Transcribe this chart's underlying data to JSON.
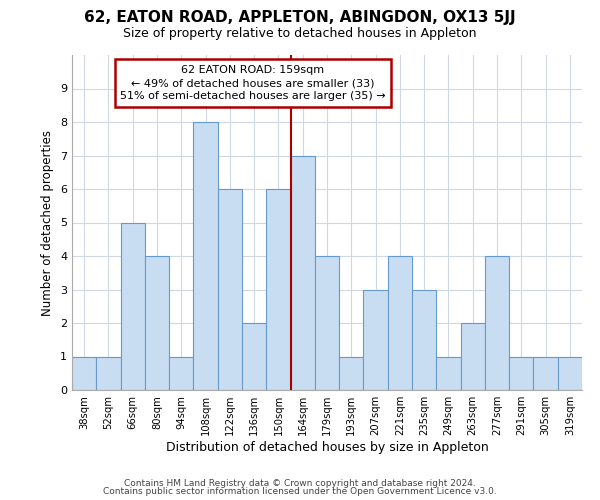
{
  "title": "62, EATON ROAD, APPLETON, ABINGDON, OX13 5JJ",
  "subtitle": "Size of property relative to detached houses in Appleton",
  "xlabel": "Distribution of detached houses by size in Appleton",
  "ylabel": "Number of detached properties",
  "bar_labels": [
    "38sqm",
    "52sqm",
    "66sqm",
    "80sqm",
    "94sqm",
    "108sqm",
    "122sqm",
    "136sqm",
    "150sqm",
    "164sqm",
    "179sqm",
    "193sqm",
    "207sqm",
    "221sqm",
    "235sqm",
    "249sqm",
    "263sqm",
    "277sqm",
    "291sqm",
    "305sqm",
    "319sqm"
  ],
  "bar_heights": [
    1,
    1,
    5,
    4,
    1,
    8,
    6,
    2,
    6,
    7,
    4,
    1,
    3,
    4,
    3,
    1,
    2,
    4,
    1,
    1,
    1
  ],
  "bar_color": "#c9ddf2",
  "bar_edge_color": "#6699cc",
  "grid_color": "#d0d8e4",
  "vline_color": "#aa0000",
  "annotation_box_text": "62 EATON ROAD: 159sqm\n← 49% of detached houses are smaller (33)\n51% of semi-detached houses are larger (35) →",
  "annotation_box_color": "#aa0000",
  "annotation_box_fill": "#ffffff",
  "footer_line1": "Contains HM Land Registry data © Crown copyright and database right 2024.",
  "footer_line2": "Contains public sector information licensed under the Open Government Licence v3.0.",
  "ylim": [
    0,
    10
  ],
  "yticks": [
    0,
    1,
    2,
    3,
    4,
    5,
    6,
    7,
    8,
    9,
    10
  ],
  "background_color": "#ffffff",
  "title_fontsize": 11,
  "subtitle_fontsize": 9,
  "footer_fontsize": 6.5
}
